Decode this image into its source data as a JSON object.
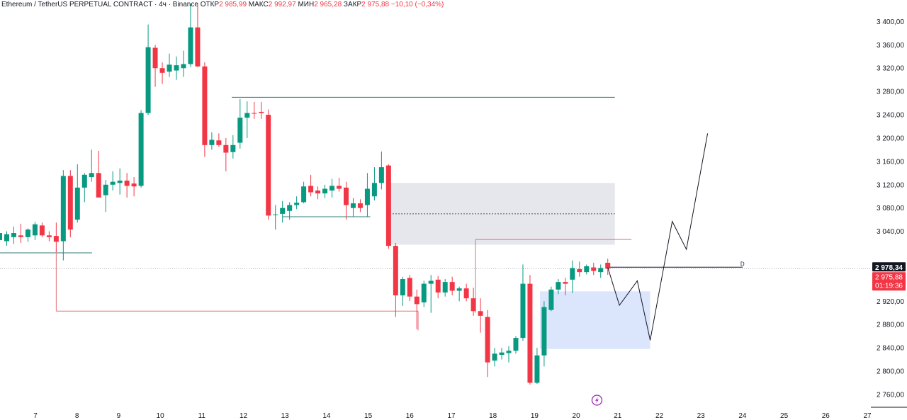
{
  "header": {
    "symbol": "Ethereum / TetherUS PERPETUAL CONTRACT · 4ч · Binance",
    "open_label": "ОТКР",
    "open_value": "2 985,99",
    "high_label": "МАКС",
    "high_value": "2 992,97",
    "low_label": "МИН",
    "low_value": "2 965,28",
    "close_label": "ЗАКР",
    "close_value": "2 975,88",
    "change": "−10,10 (−0,34%)"
  },
  "price_badges": {
    "level_value": "2 978,34",
    "last_price": "2 975,88",
    "countdown": "01:19:36"
  },
  "level_label": "D",
  "colors": {
    "up": "#089981",
    "down": "#f23645",
    "zone_gray": "#e6e7ec",
    "zone_blue": "#dbe6fd"
  },
  "icons": {
    "lightning": "lightning-icon"
  },
  "chart_data": {
    "type": "candlestick",
    "title": "",
    "xlabel": "",
    "ylabel": "",
    "y_ticks": [
      {
        "value": 3400,
        "label": "3 400,00"
      },
      {
        "value": 3360,
        "label": "3 360,00"
      },
      {
        "value": 3320,
        "label": "3 320,00"
      },
      {
        "value": 3280,
        "label": "3 280,00"
      },
      {
        "value": 3240,
        "label": "3 240,00"
      },
      {
        "value": 3200,
        "label": "3 200,00"
      },
      {
        "value": 3160,
        "label": "3 160,00"
      },
      {
        "value": 3120,
        "label": "3 120,00"
      },
      {
        "value": 3080,
        "label": "3 080,00"
      },
      {
        "value": 3040,
        "label": "3 040,00"
      },
      {
        "value": 2920,
        "label": "2 920,00"
      },
      {
        "value": 2880,
        "label": "2 880,00"
      },
      {
        "value": 2840,
        "label": "2 840,00"
      },
      {
        "value": 2800,
        "label": "2 800,00"
      },
      {
        "value": 2760,
        "label": "2 760,00"
      }
    ],
    "x_ticks": [
      {
        "day": 7,
        "label": "7"
      },
      {
        "day": 8,
        "label": "8"
      },
      {
        "day": 9,
        "label": "9"
      },
      {
        "day": 10,
        "label": "10"
      },
      {
        "day": 11,
        "label": "11"
      },
      {
        "day": 12,
        "label": "12"
      },
      {
        "day": 13,
        "label": "13"
      },
      {
        "day": 14,
        "label": "14"
      },
      {
        "day": 15,
        "label": "15"
      },
      {
        "day": 16,
        "label": "16"
      },
      {
        "day": 17,
        "label": "17"
      },
      {
        "day": 18,
        "label": "18"
      },
      {
        "day": 19,
        "label": "19"
      },
      {
        "day": 20,
        "label": "20"
      },
      {
        "day": 21,
        "label": "21"
      },
      {
        "day": 22,
        "label": "22"
      },
      {
        "day": 23,
        "label": "23"
      },
      {
        "day": 24,
        "label": "24"
      },
      {
        "day": 25,
        "label": "25"
      },
      {
        "day": 26,
        "label": "26"
      },
      {
        "day": 27,
        "label": "27"
      }
    ],
    "ylim": [
      2738,
      3437
    ],
    "xlim": [
      6.14,
      28.0
    ],
    "candles": [
      {
        "x": 6.14,
        "o": 3025,
        "h": 3040,
        "l": 3010,
        "c": 3037
      },
      {
        "x": 6.31,
        "o": 3023,
        "h": 3040,
        "l": 3015,
        "c": 3035
      },
      {
        "x": 6.48,
        "o": 3030,
        "h": 3048,
        "l": 3018,
        "c": 3037
      },
      {
        "x": 6.65,
        "o": 3033,
        "h": 3053,
        "l": 3020,
        "c": 3030
      },
      {
        "x": 6.82,
        "o": 3030,
        "h": 3045,
        "l": 3022,
        "c": 3043
      },
      {
        "x": 6.99,
        "o": 3033,
        "h": 3056,
        "l": 3025,
        "c": 3052
      },
      {
        "x": 7.16,
        "o": 3050,
        "h": 3055,
        "l": 3030,
        "c": 3033
      },
      {
        "x": 7.33,
        "o": 3033,
        "h": 3040,
        "l": 3023,
        "c": 3030
      },
      {
        "x": 7.5,
        "o": 3032,
        "h": 3055,
        "l": 3005,
        "c": 3022
      },
      {
        "x": 7.67,
        "o": 3023,
        "h": 3145,
        "l": 2990,
        "c": 3135
      },
      {
        "x": 7.84,
        "o": 3135,
        "h": 3145,
        "l": 3030,
        "c": 3043
      },
      {
        "x": 8.01,
        "o": 3060,
        "h": 3155,
        "l": 3055,
        "c": 3115
      },
      {
        "x": 8.18,
        "o": 3115,
        "h": 3140,
        "l": 3090,
        "c": 3137
      },
      {
        "x": 8.35,
        "o": 3133,
        "h": 3180,
        "l": 3125,
        "c": 3140
      },
      {
        "x": 8.52,
        "o": 3140,
        "h": 3178,
        "l": 3100,
        "c": 3098
      },
      {
        "x": 8.69,
        "o": 3102,
        "h": 3128,
        "l": 3073,
        "c": 3120
      },
      {
        "x": 8.86,
        "o": 3120,
        "h": 3143,
        "l": 3110,
        "c": 3125
      },
      {
        "x": 9.03,
        "o": 3123,
        "h": 3148,
        "l": 3103,
        "c": 3127
      },
      {
        "x": 9.2,
        "o": 3127,
        "h": 3140,
        "l": 3098,
        "c": 3118
      },
      {
        "x": 9.37,
        "o": 3122,
        "h": 3133,
        "l": 3100,
        "c": 3117
      },
      {
        "x": 9.54,
        "o": 3118,
        "h": 3248,
        "l": 3115,
        "c": 3243
      },
      {
        "x": 9.71,
        "o": 3243,
        "h": 3395,
        "l": 3240,
        "c": 3356
      },
      {
        "x": 9.88,
        "o": 3355,
        "h": 3360,
        "l": 3288,
        "c": 3320
      },
      {
        "x": 10.05,
        "o": 3320,
        "h": 3330,
        "l": 3293,
        "c": 3312
      },
      {
        "x": 10.22,
        "o": 3314,
        "h": 3345,
        "l": 3305,
        "c": 3326
      },
      {
        "x": 10.39,
        "o": 3316,
        "h": 3340,
        "l": 3300,
        "c": 3325
      },
      {
        "x": 10.56,
        "o": 3320,
        "h": 3350,
        "l": 3305,
        "c": 3327
      },
      {
        "x": 10.73,
        "o": 3327,
        "h": 3430,
        "l": 3322,
        "c": 3390
      },
      {
        "x": 10.9,
        "o": 3390,
        "h": 3430,
        "l": 3322,
        "c": 3323
      },
      {
        "x": 11.07,
        "o": 3323,
        "h": 3330,
        "l": 3168,
        "c": 3188
      },
      {
        "x": 11.24,
        "o": 3188,
        "h": 3210,
        "l": 3180,
        "c": 3197
      },
      {
        "x": 11.41,
        "o": 3196,
        "h": 3208,
        "l": 3185,
        "c": 3188
      },
      {
        "x": 11.58,
        "o": 3188,
        "h": 3200,
        "l": 3143,
        "c": 3175
      },
      {
        "x": 11.75,
        "o": 3176,
        "h": 3205,
        "l": 3165,
        "c": 3188
      },
      {
        "x": 11.92,
        "o": 3192,
        "h": 3267,
        "l": 3182,
        "c": 3235
      },
      {
        "x": 12.09,
        "o": 3235,
        "h": 3263,
        "l": 3200,
        "c": 3243
      },
      {
        "x": 12.26,
        "o": 3243,
        "h": 3262,
        "l": 3233,
        "c": 3242
      },
      {
        "x": 12.43,
        "o": 3245,
        "h": 3262,
        "l": 3233,
        "c": 3243
      },
      {
        "x": 12.6,
        "o": 3240,
        "h": 3249,
        "l": 3060,
        "c": 3067
      },
      {
        "x": 12.77,
        "o": 3068,
        "h": 3085,
        "l": 3043,
        "c": 3069
      },
      {
        "x": 12.94,
        "o": 3070,
        "h": 3092,
        "l": 3055,
        "c": 3080
      },
      {
        "x": 13.11,
        "o": 3075,
        "h": 3090,
        "l": 3060,
        "c": 3085
      },
      {
        "x": 13.28,
        "o": 3085,
        "h": 3100,
        "l": 3078,
        "c": 3089
      },
      {
        "x": 13.45,
        "o": 3090,
        "h": 3125,
        "l": 3088,
        "c": 3117
      },
      {
        "x": 13.62,
        "o": 3118,
        "h": 3137,
        "l": 3100,
        "c": 3107
      },
      {
        "x": 13.79,
        "o": 3110,
        "h": 3117,
        "l": 3095,
        "c": 3105
      },
      {
        "x": 13.96,
        "o": 3105,
        "h": 3120,
        "l": 3097,
        "c": 3113
      },
      {
        "x": 14.13,
        "o": 3110,
        "h": 3130,
        "l": 3098,
        "c": 3118
      },
      {
        "x": 14.3,
        "o": 3118,
        "h": 3132,
        "l": 3108,
        "c": 3113
      },
      {
        "x": 14.47,
        "o": 3115,
        "h": 3125,
        "l": 3060,
        "c": 3085
      },
      {
        "x": 14.64,
        "o": 3080,
        "h": 3097,
        "l": 3065,
        "c": 3088
      },
      {
        "x": 14.81,
        "o": 3088,
        "h": 3095,
        "l": 3073,
        "c": 3080
      },
      {
        "x": 14.98,
        "o": 3085,
        "h": 3140,
        "l": 3065,
        "c": 3113
      },
      {
        "x": 15.15,
        "o": 3100,
        "h": 3150,
        "l": 3093,
        "c": 3123
      },
      {
        "x": 15.32,
        "o": 3123,
        "h": 3177,
        "l": 3112,
        "c": 3150
      },
      {
        "x": 15.49,
        "o": 3153,
        "h": 3155,
        "l": 3010,
        "c": 3015
      },
      {
        "x": 15.66,
        "o": 3015,
        "h": 3020,
        "l": 2893,
        "c": 2930
      },
      {
        "x": 15.83,
        "o": 2930,
        "h": 2962,
        "l": 2912,
        "c": 2958
      },
      {
        "x": 16.0,
        "o": 2960,
        "h": 2965,
        "l": 2920,
        "c": 2928
      },
      {
        "x": 16.17,
        "o": 2928,
        "h": 2940,
        "l": 2872,
        "c": 2915
      },
      {
        "x": 16.34,
        "o": 2918,
        "h": 2955,
        "l": 2910,
        "c": 2950
      },
      {
        "x": 16.51,
        "o": 2950,
        "h": 2965,
        "l": 2900,
        "c": 2955
      },
      {
        "x": 16.68,
        "o": 2957,
        "h": 2963,
        "l": 2925,
        "c": 2935
      },
      {
        "x": 16.85,
        "o": 2935,
        "h": 2958,
        "l": 2928,
        "c": 2953
      },
      {
        "x": 17.02,
        "o": 2953,
        "h": 2962,
        "l": 2930,
        "c": 2938
      },
      {
        "x": 17.19,
        "o": 2938,
        "h": 2945,
        "l": 2920,
        "c": 2942
      },
      {
        "x": 17.36,
        "o": 2942,
        "h": 2950,
        "l": 2920,
        "c": 2925
      },
      {
        "x": 17.53,
        "o": 2925,
        "h": 2943,
        "l": 2895,
        "c": 2903
      },
      {
        "x": 17.7,
        "o": 2903,
        "h": 2925,
        "l": 2866,
        "c": 2895
      },
      {
        "x": 17.87,
        "o": 2893,
        "h": 2905,
        "l": 2790,
        "c": 2815
      },
      {
        "x": 18.04,
        "o": 2818,
        "h": 2840,
        "l": 2808,
        "c": 2830
      },
      {
        "x": 18.21,
        "o": 2828,
        "h": 2840,
        "l": 2820,
        "c": 2832
      },
      {
        "x": 18.38,
        "o": 2831,
        "h": 2843,
        "l": 2815,
        "c": 2835
      },
      {
        "x": 18.55,
        "o": 2835,
        "h": 2860,
        "l": 2830,
        "c": 2857
      },
      {
        "x": 18.72,
        "o": 2857,
        "h": 2983,
        "l": 2852,
        "c": 2950
      },
      {
        "x": 18.89,
        "o": 2950,
        "h": 2965,
        "l": 2777,
        "c": 2780
      },
      {
        "x": 19.06,
        "o": 2780,
        "h": 2840,
        "l": 2778,
        "c": 2827
      },
      {
        "x": 19.23,
        "o": 2827,
        "h": 2920,
        "l": 2808,
        "c": 2910
      },
      {
        "x": 19.4,
        "o": 2905,
        "h": 2945,
        "l": 2903,
        "c": 2940
      },
      {
        "x": 19.57,
        "o": 2940,
        "h": 2958,
        "l": 2932,
        "c": 2953
      },
      {
        "x": 19.74,
        "o": 2953,
        "h": 2960,
        "l": 2930,
        "c": 2950
      },
      {
        "x": 19.91,
        "o": 2957,
        "h": 2990,
        "l": 2934,
        "c": 2977
      },
      {
        "x": 20.08,
        "o": 2975,
        "h": 2988,
        "l": 2962,
        "c": 2970
      },
      {
        "x": 20.25,
        "o": 2970,
        "h": 2983,
        "l": 2966,
        "c": 2980
      },
      {
        "x": 20.42,
        "o": 2978,
        "h": 2986,
        "l": 2965,
        "c": 2972
      },
      {
        "x": 20.59,
        "o": 2970,
        "h": 2983,
        "l": 2960,
        "c": 2977
      },
      {
        "x": 20.76,
        "o": 2985.99,
        "h": 2992.97,
        "l": 2965.28,
        "c": 2975.88
      }
    ],
    "zones": [
      {
        "x1": 15.45,
        "x2": 20.93,
        "y1": 3017,
        "y2": 3123,
        "color": "#e6e7ec",
        "mid_dashed": 3070
      },
      {
        "x1": 19.13,
        "x2": 21.78,
        "y1": 2838,
        "y2": 2937,
        "color": "#dbe6fd"
      }
    ],
    "levels": [
      {
        "x1": 11.72,
        "x2": 20.93,
        "y": 3270
      },
      {
        "x1": 6.14,
        "x2": 8.36,
        "y": 3003
      },
      {
        "x1": 12.94,
        "x2": 15.05,
        "y": 3065
      },
      {
        "x1": 17.58,
        "x2": 21.33,
        "y": 3026,
        "drop_to": 2900
      },
      {
        "x1": 20.76,
        "x2": 24.0,
        "y": 2978.34
      },
      {
        "x1": 7.5,
        "x2": 16.2,
        "y": 2903,
        "rise_to": 3010
      }
    ],
    "projection_path": [
      {
        "x": 20.76,
        "y": 2978
      },
      {
        "x": 21.04,
        "y": 2913
      },
      {
        "x": 21.47,
        "y": 2955
      },
      {
        "x": 21.78,
        "y": 2853
      },
      {
        "x": 22.31,
        "y": 3057
      },
      {
        "x": 22.65,
        "y": 3009
      },
      {
        "x": 23.16,
        "y": 3208
      }
    ],
    "current_price": 2975.88,
    "last_marker": 2978.34
  }
}
